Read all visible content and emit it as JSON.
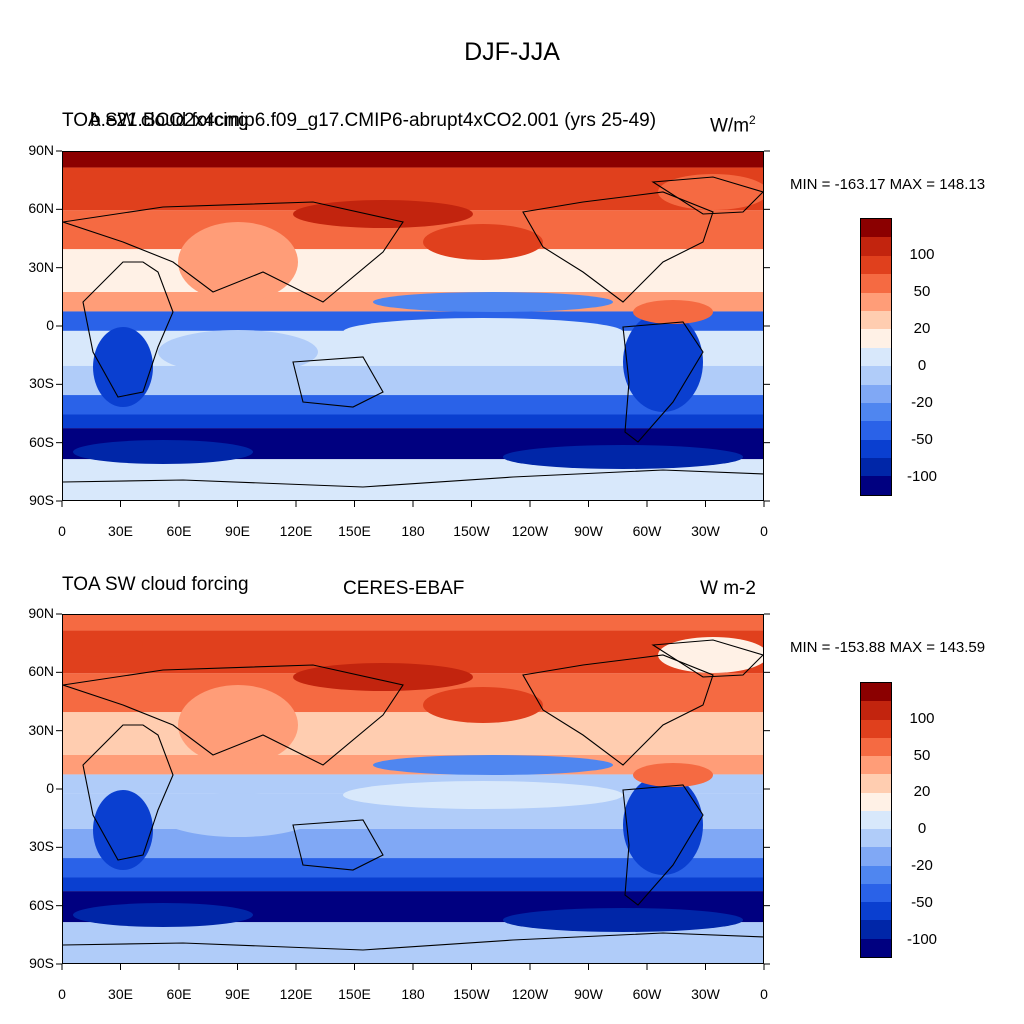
{
  "title": "DJF-JJA",
  "colors": {
    "levels": [
      "#000080",
      "#0026a8",
      "#0a3fd0",
      "#2a62e8",
      "#4f86f0",
      "#80a8f5",
      "#b0ccf9",
      "#d8e8fb",
      "#fff1e6",
      "#ffcdb0",
      "#ff9d78",
      "#f56a42",
      "#e0401d",
      "#c2240e",
      "#8b0000"
    ],
    "coastline": "#000000"
  },
  "lat_ticks": [
    "90N",
    "60N",
    "30N",
    "0",
    "30S",
    "60S",
    "90S"
  ],
  "lon_ticks": [
    "0",
    "30E",
    "60E",
    "90E",
    "120E",
    "150E",
    "180",
    "150W",
    "120W",
    "90W",
    "60W",
    "30W",
    "0"
  ],
  "colorbar_labels": [
    "100",
    "50",
    "20",
    "0",
    "-20",
    "-50",
    "-100"
  ],
  "panels": [
    {
      "left_title": "TOA SW cloud forcing",
      "center_title": "b.e21.BCO2x4cmip6.f09_g17.CMIP6-abrupt4xCO2.001 (yrs 25-49)",
      "units_base": "W/m",
      "units_sup": "2",
      "minmax": "MIN = -163.17  MAX = 148.13"
    },
    {
      "left_title": "TOA SW cloud forcing",
      "center_title": "CERES-EBAF",
      "units_base": "W m-2",
      "units_sup": "",
      "minmax": "MIN = -153.88  MAX = 143.59"
    }
  ]
}
